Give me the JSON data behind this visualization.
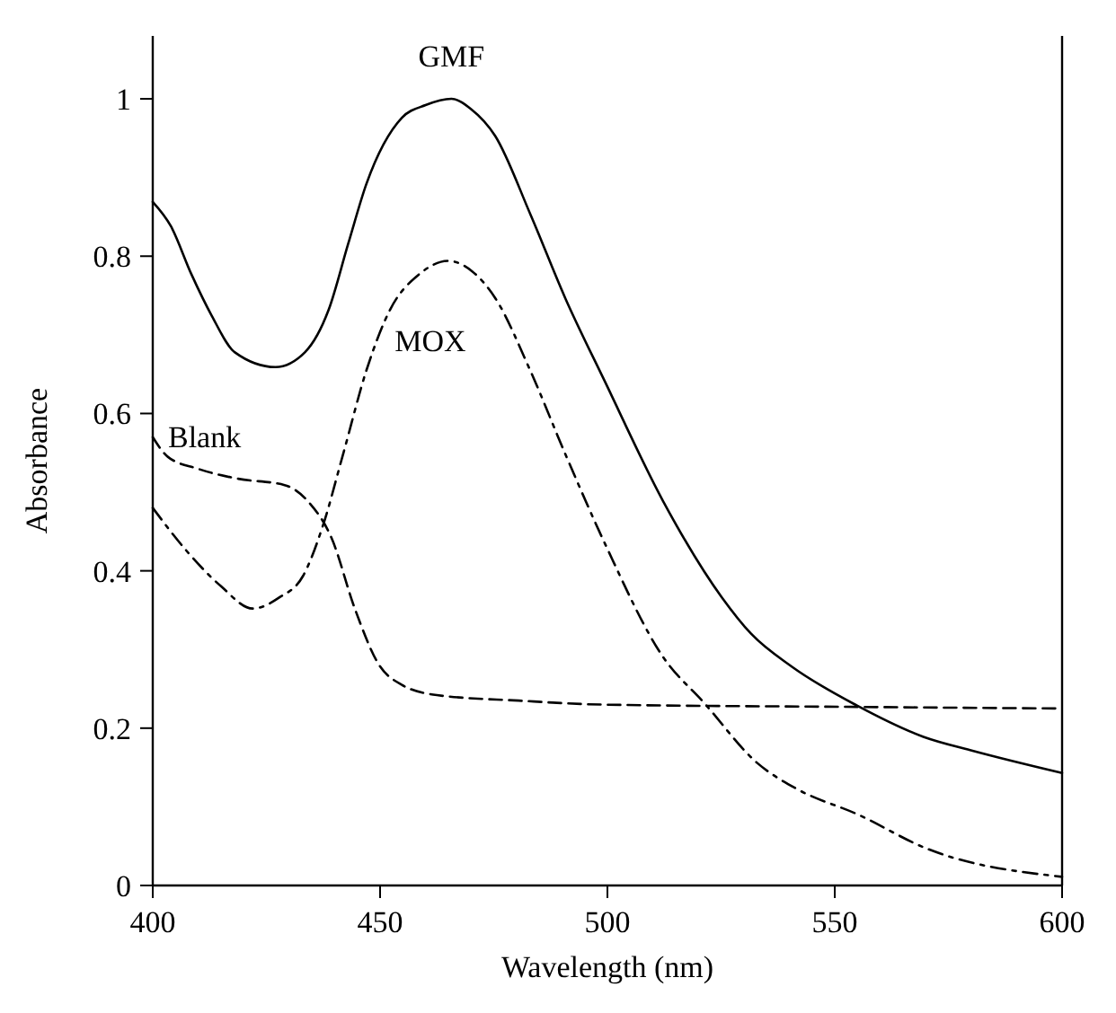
{
  "chart_data": {
    "type": "line",
    "xlabel": "Wavelength (nm)",
    "ylabel": "Absorbance",
    "xlim": [
      400,
      600
    ],
    "xticks": [
      400,
      450,
      500,
      550,
      600
    ],
    "ylim": [
      0,
      1.08
    ],
    "yticks": [
      0,
      0.2,
      0.4,
      0.6,
      0.8,
      1
    ],
    "grid": false,
    "marker": "none",
    "series": [
      {
        "name": "GMF",
        "color": "#000000",
        "line_style": "solid",
        "x": [
          400,
          404,
          408.5,
          413,
          418,
          427,
          433.5,
          438.7,
          443,
          447,
          454.8,
          460,
          465.7,
          470,
          475.3,
          483,
          490.7,
          499.5,
          512.3,
          525.2,
          531.6,
          540.6,
          554.8,
          569.5,
          580.5,
          600
        ],
        "values": [
          0.869,
          0.838,
          0.777,
          0.724,
          0.678,
          0.659,
          0.678,
          0.732,
          0.816,
          0.892,
          0.976,
          0.992,
          1.0,
          0.987,
          0.953,
          0.854,
          0.747,
          0.64,
          0.488,
          0.366,
          0.32,
          0.278,
          0.229,
          0.189,
          0.171,
          0.143
        ]
      },
      {
        "name": "MOX",
        "color": "#000000",
        "line_style": "dashdot",
        "x": [
          400,
          407.2,
          414.9,
          422,
          427.8,
          433,
          437.4,
          441.9,
          447,
          452.2,
          458.6,
          465,
          470.2,
          475.3,
          483,
          490.7,
          499.5,
          512.3,
          521.3,
          532.9,
          541.9,
          554.8,
          570.2,
          600
        ],
        "values": [
          0.48,
          0.427,
          0.381,
          0.352,
          0.366,
          0.393,
          0.457,
          0.549,
          0.655,
          0.732,
          0.777,
          0.794,
          0.781,
          0.747,
          0.655,
          0.549,
          0.434,
          0.29,
          0.232,
          0.156,
          0.122,
          0.091,
          0.047,
          0.011
        ]
      },
      {
        "name": "Blank",
        "color": "#000000",
        "line_style": "dashed",
        "x": [
          400,
          403.3,
          409.8,
          418.8,
          429,
          434.2,
          439.3,
          444.5,
          449.6,
          454.8,
          462.5,
          480.5,
          498.5,
          554.8,
          600
        ],
        "values": [
          0.57,
          0.545,
          0.53,
          0.517,
          0.509,
          0.488,
          0.442,
          0.351,
          0.282,
          0.255,
          0.242,
          0.235,
          0.23,
          0.227,
          0.225
        ]
      }
    ]
  }
}
